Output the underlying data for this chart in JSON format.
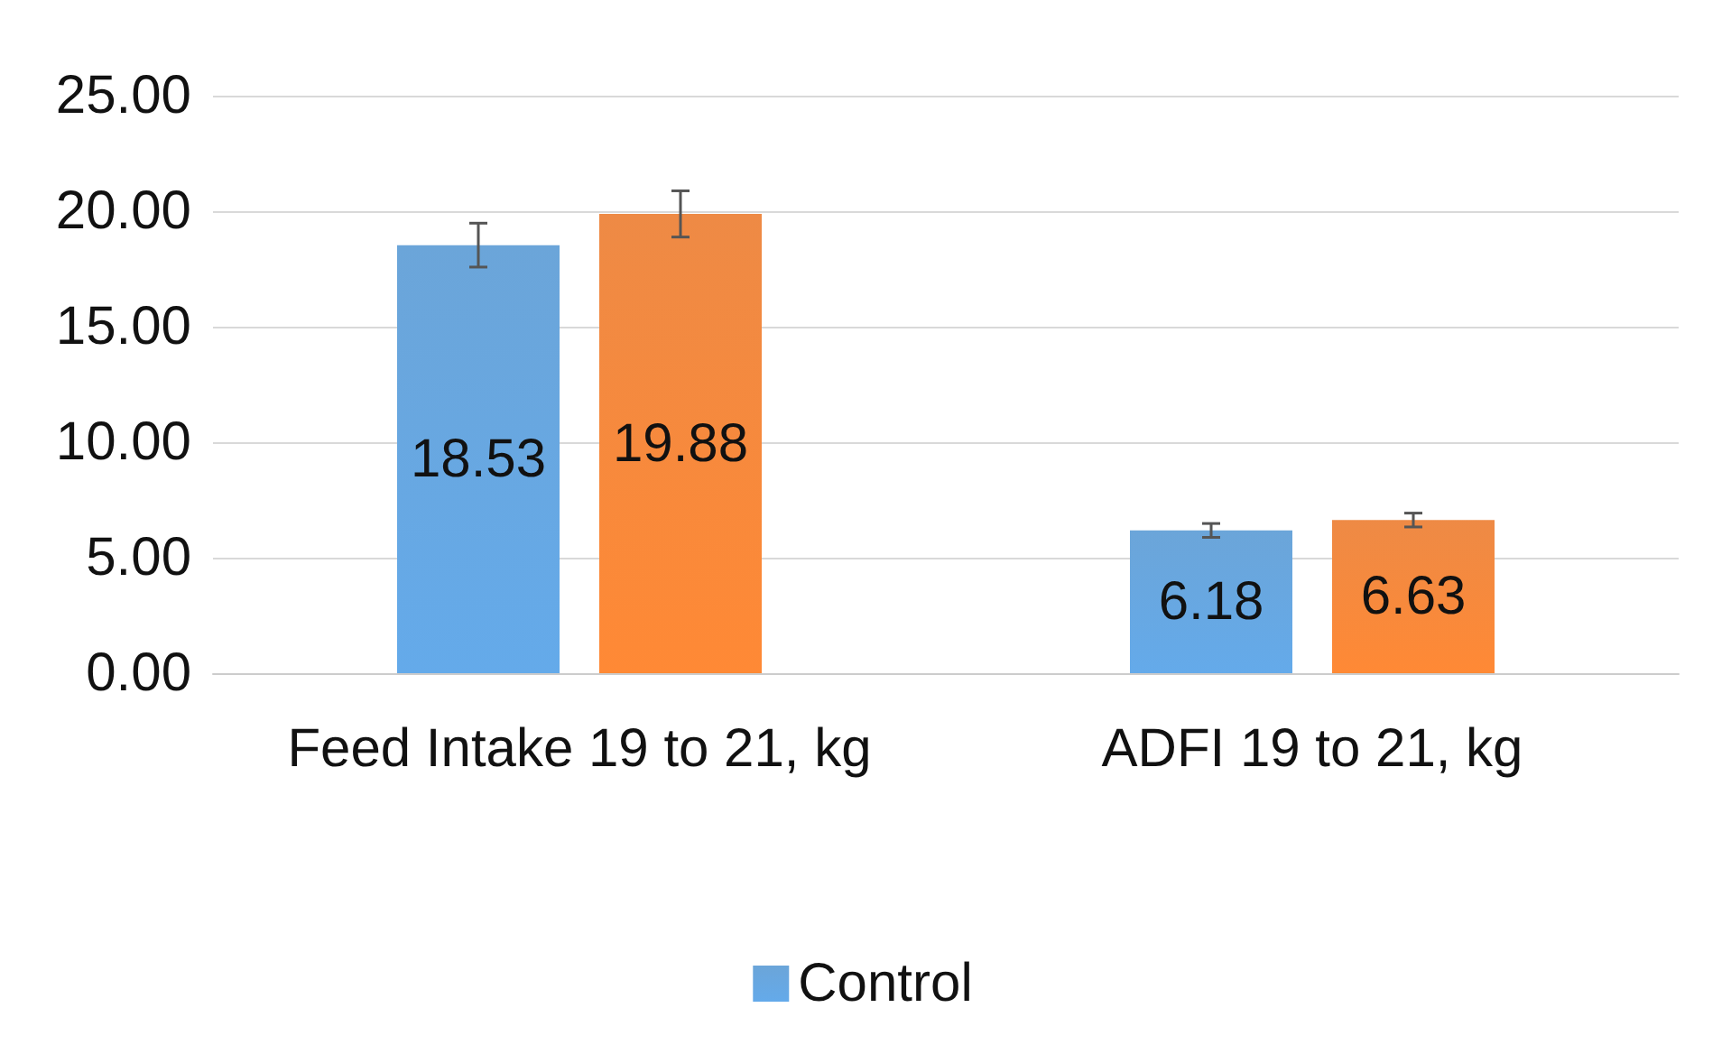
{
  "chart_data": {
    "type": "bar",
    "categories": [
      "Feed Intake 19 to 21, kg",
      "ADFI 19 to 21, kg"
    ],
    "series": [
      {
        "name": "Control",
        "color": "#5b9bd5",
        "values": [
          18.53,
          6.18
        ],
        "errors": [
          0.95,
          0.3
        ]
      },
      {
        "color": "#ed7d31",
        "values": [
          19.88,
          6.63
        ],
        "errors": [
          1.0,
          0.3
        ]
      }
    ],
    "ylim": [
      0,
      25
    ],
    "yticks": [
      {
        "value": 0,
        "label": "0.00"
      },
      {
        "value": 5,
        "label": "5.00"
      },
      {
        "value": 10,
        "label": "10.00"
      },
      {
        "value": 15,
        "label": "15.00"
      },
      {
        "value": 20,
        "label": "20.00"
      },
      {
        "value": 25,
        "label": "25.00"
      }
    ],
    "grid": "y",
    "legend": "bottom",
    "data_labels": true
  }
}
